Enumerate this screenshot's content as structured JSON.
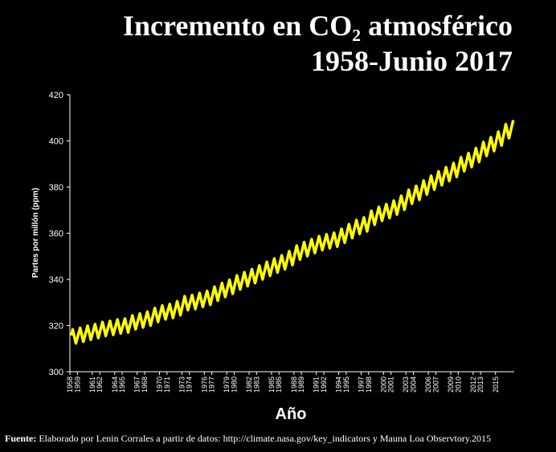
{
  "chart_data": {
    "type": "line",
    "title": "Incremento en CO₂ atmosférico",
    "subtitle": "1958-Junio 2017",
    "y_label": "Partes por millón (ppm)",
    "x_label": "Año",
    "source_label": "Fuente:",
    "source_text": " Elaborado por Lenin Corrales a partir de datos: http://climate.nasa.gov/key_indicators y Mauna Loa Observtory.2015",
    "xlim": [
      1958,
      2017.5
    ],
    "xticks": [
      1958,
      1959,
      1961,
      1962,
      1964,
      1965,
      1967,
      1968,
      1970,
      1971,
      1973,
      1974,
      1976,
      1977,
      1979,
      1980,
      1982,
      1983,
      1985,
      1986,
      1988,
      1989,
      1991,
      1992,
      1994,
      1995,
      1997,
      1998,
      2000,
      2001,
      2003,
      2004,
      2006,
      2007,
      2009,
      2010,
      2012,
      2013,
      2015
    ],
    "ylim": [
      300,
      420
    ],
    "yticks": [
      300,
      320,
      340,
      360,
      380,
      400,
      420
    ],
    "series": [
      {
        "color": "#ffff00",
        "x": [
          1958.2,
          1958.37,
          1958.8,
          1959.37,
          1959.8,
          1960.37,
          1960.8,
          1961.37,
          1961.8,
          1962.37,
          1962.8,
          1963.37,
          1963.8,
          1964.37,
          1964.8,
          1965.37,
          1965.8,
          1966.37,
          1966.8,
          1967.37,
          1967.8,
          1968.37,
          1968.8,
          1969.37,
          1969.8,
          1970.37,
          1970.8,
          1971.37,
          1971.8,
          1972.37,
          1972.8,
          1973.37,
          1973.8,
          1974.37,
          1974.8,
          1975.37,
          1975.8,
          1976.37,
          1976.8,
          1977.37,
          1977.8,
          1978.37,
          1978.8,
          1979.37,
          1979.8,
          1980.37,
          1980.8,
          1981.37,
          1981.8,
          1982.37,
          1982.8,
          1983.37,
          1983.8,
          1984.37,
          1984.8,
          1985.37,
          1985.8,
          1986.37,
          1986.8,
          1987.37,
          1987.8,
          1988.37,
          1988.8,
          1989.37,
          1989.8,
          1990.37,
          1990.8,
          1991.37,
          1991.8,
          1992.37,
          1992.8,
          1993.37,
          1993.8,
          1994.37,
          1994.8,
          1995.37,
          1995.8,
          1996.37,
          1996.8,
          1997.37,
          1997.8,
          1998.37,
          1998.8,
          1999.37,
          1999.8,
          2000.37,
          2000.8,
          2001.37,
          2001.8,
          2002.37,
          2002.8,
          2003.37,
          2003.8,
          2004.37,
          2004.8,
          2005.37,
          2005.8,
          2006.37,
          2006.8,
          2007.37,
          2007.8,
          2008.37,
          2008.8,
          2009.37,
          2009.8,
          2010.37,
          2010.8,
          2011.37,
          2011.8,
          2012.37,
          2012.8,
          2013.37,
          2013.8,
          2014.37,
          2014.8,
          2015.37,
          2015.8,
          2016.37,
          2016.8,
          2017.37
        ],
        "values": [
          315.7,
          318.3,
          312.3,
          319.0,
          313.0,
          319.9,
          313.9,
          320.6,
          314.6,
          321.5,
          315.5,
          322.0,
          316.0,
          322.6,
          316.6,
          323.0,
          317.0,
          324.4,
          318.4,
          325.2,
          319.2,
          326.0,
          320.0,
          327.6,
          321.6,
          328.7,
          322.7,
          329.3,
          323.3,
          330.5,
          324.5,
          332.7,
          326.7,
          333.2,
          327.2,
          334.1,
          328.1,
          335.0,
          329.0,
          336.8,
          330.8,
          338.4,
          332.4,
          339.8,
          333.8,
          341.7,
          335.7,
          343.1,
          337.1,
          344.4,
          338.4,
          346.0,
          340.0,
          347.6,
          341.6,
          349.0,
          343.0,
          350.4,
          344.4,
          352.2,
          346.2,
          354.6,
          348.6,
          356.1,
          350.1,
          357.4,
          351.4,
          358.7,
          352.7,
          359.5,
          353.5,
          360.2,
          354.2,
          361.9,
          355.9,
          363.9,
          357.9,
          365.7,
          359.7,
          366.8,
          360.8,
          369.7,
          363.7,
          371.4,
          365.4,
          372.6,
          366.6,
          374.1,
          368.1,
          376.2,
          370.2,
          378.8,
          372.8,
          380.5,
          374.5,
          382.8,
          376.8,
          384.9,
          378.9,
          386.8,
          380.8,
          388.6,
          382.6,
          390.4,
          384.4,
          392.9,
          386.9,
          394.7,
          388.7,
          396.9,
          390.9,
          399.5,
          393.5,
          401.6,
          395.6,
          404.0,
          398.0,
          407.2,
          401.2,
          409.0
        ]
      }
    ]
  }
}
